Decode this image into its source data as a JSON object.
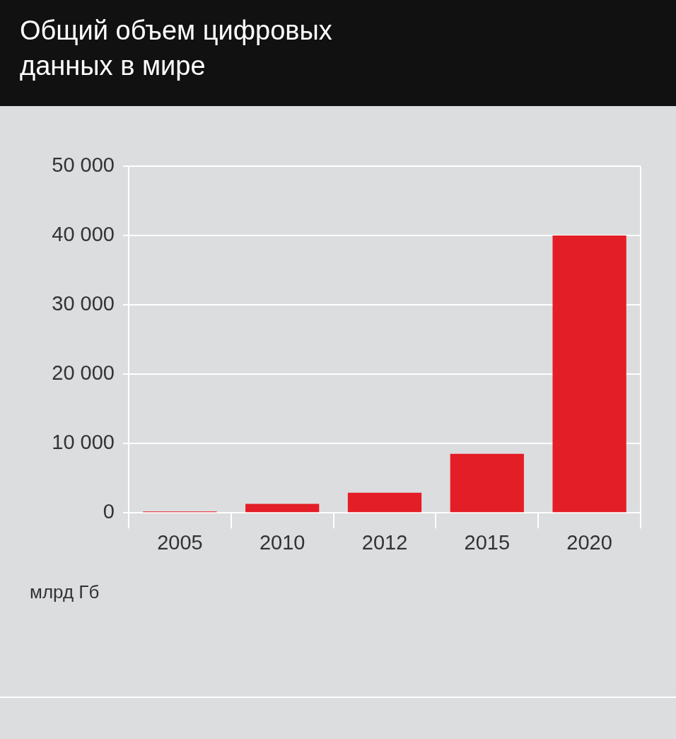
{
  "chart_data": {
    "type": "bar",
    "title": "Общий объем цифровых данных в мире",
    "ylabel": "млрд Гб",
    "categories": [
      "2005",
      "2010",
      "2012",
      "2015",
      "2020"
    ],
    "values": [
      200,
      1300,
      2900,
      8500,
      40000
    ],
    "color": "#e41e26",
    "ylim": [
      0,
      50000
    ],
    "yticks": [
      {
        "value": 0,
        "label": "0"
      },
      {
        "value": 10000,
        "label": "10 000"
      },
      {
        "value": 20000,
        "label": "20 000"
      },
      {
        "value": 30000,
        "label": "30 000"
      },
      {
        "value": 40000,
        "label": "40 000"
      },
      {
        "value": 50000,
        "label": "50 000"
      }
    ],
    "grid": "y"
  }
}
